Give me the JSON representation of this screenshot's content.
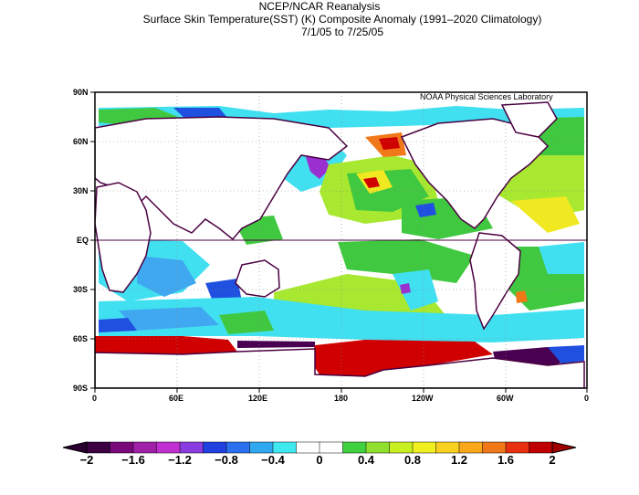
{
  "title": "NCEP/NCAR Reanalysis",
  "credit": "NOAA Physical Sciences Laboratory",
  "lat_labels": [
    "90N",
    "60N",
    "30N",
    "EQ",
    "30S",
    "60S",
    "90S"
  ],
  "lon_labels": [
    "0",
    "60E",
    "120E",
    "180",
    "120W",
    "60W",
    "0"
  ],
  "caption_line1": "Surface Skin Temperature(SST) (K) Composite Anomaly (1991–2020 Climatology)",
  "caption_line2": "7/1/05  to 7/25/05",
  "colorbar": {
    "labels": [
      "−2",
      "−1.6",
      "−1.2",
      "−0.8",
      "−0.4",
      "0",
      "0.4",
      "0.8",
      "1.2",
      "1.6",
      "2"
    ],
    "colors": [
      "#3a0040",
      "#7a0a7a",
      "#a020a8",
      "#c030d0",
      "#8a3ce0",
      "#2040e0",
      "#2a70f0",
      "#30a8f0",
      "#40e8f0",
      "#ffffff",
      "#ffffff",
      "#40d040",
      "#90e030",
      "#c8f020",
      "#f0f020",
      "#f8d020",
      "#f8a818",
      "#f07818",
      "#e83010",
      "#c00000"
    ]
  },
  "map_colors": {
    "land_outline": "#4a0040",
    "red": "#d00000",
    "orange": "#f07818",
    "yellow": "#f0e820",
    "lime": "#a8e830",
    "green": "#40c840",
    "cyan": "#40e0f0",
    "lightblue": "#40a8f0",
    "blue": "#2050e0",
    "purple": "#9a30d0",
    "darkpurple": "#4a0050"
  }
}
